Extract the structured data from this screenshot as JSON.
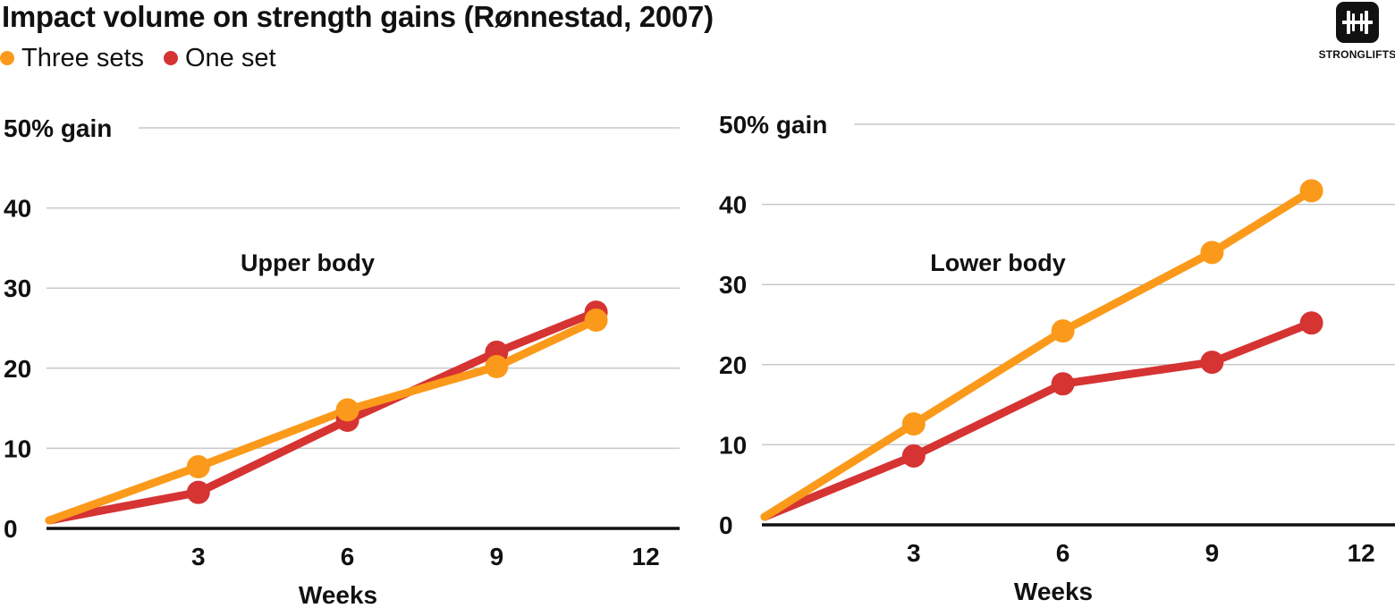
{
  "title": "Impact volume on strength gains (Rønnestad, 2007)",
  "legend": [
    {
      "label": "Three sets",
      "color": "#fb9a1a"
    },
    {
      "label": "One set",
      "color": "#d63333"
    }
  ],
  "logo": {
    "text": "STRONGLIFTS",
    "icon": "barbell-icon"
  },
  "chart_data": [
    {
      "type": "line",
      "title": "Upper body",
      "xlabel": "Weeks",
      "ylabel": "",
      "xlim": [
        0,
        13
      ],
      "ylim": [
        0,
        50
      ],
      "xticks": [
        3,
        6,
        9,
        12
      ],
      "yticks": [
        0,
        10,
        20,
        30,
        40,
        50
      ],
      "ytick_labels": [
        "0",
        "10",
        "20",
        "30",
        "40",
        "50% gain"
      ],
      "grid": true,
      "series": [
        {
          "name": "One set",
          "color": "#d63333",
          "x": [
            0,
            3,
            6,
            9,
            11
          ],
          "y": [
            1,
            4.5,
            13.5,
            22,
            27
          ]
        },
        {
          "name": "Three sets",
          "color": "#fb9a1a",
          "x": [
            0,
            3,
            6,
            9,
            11
          ],
          "y": [
            1,
            7.7,
            14.8,
            20.2,
            26
          ]
        }
      ]
    },
    {
      "type": "line",
      "title": "Lower body",
      "xlabel": "Weeks",
      "ylabel": "",
      "xlim": [
        0,
        13
      ],
      "ylim": [
        0,
        50
      ],
      "xticks": [
        3,
        6,
        9,
        12
      ],
      "yticks": [
        0,
        10,
        20,
        30,
        40,
        50
      ],
      "ytick_labels": [
        "0",
        "10",
        "20",
        "30",
        "40",
        "50% gain"
      ],
      "grid": true,
      "series": [
        {
          "name": "One set",
          "color": "#d63333",
          "x": [
            0,
            3,
            6,
            9,
            11
          ],
          "y": [
            1,
            8.6,
            17.6,
            20.3,
            25.2
          ]
        },
        {
          "name": "Three sets",
          "color": "#fb9a1a",
          "x": [
            0,
            3,
            6,
            9,
            11
          ],
          "y": [
            1,
            12.6,
            24.2,
            34,
            41.7
          ]
        }
      ]
    }
  ]
}
